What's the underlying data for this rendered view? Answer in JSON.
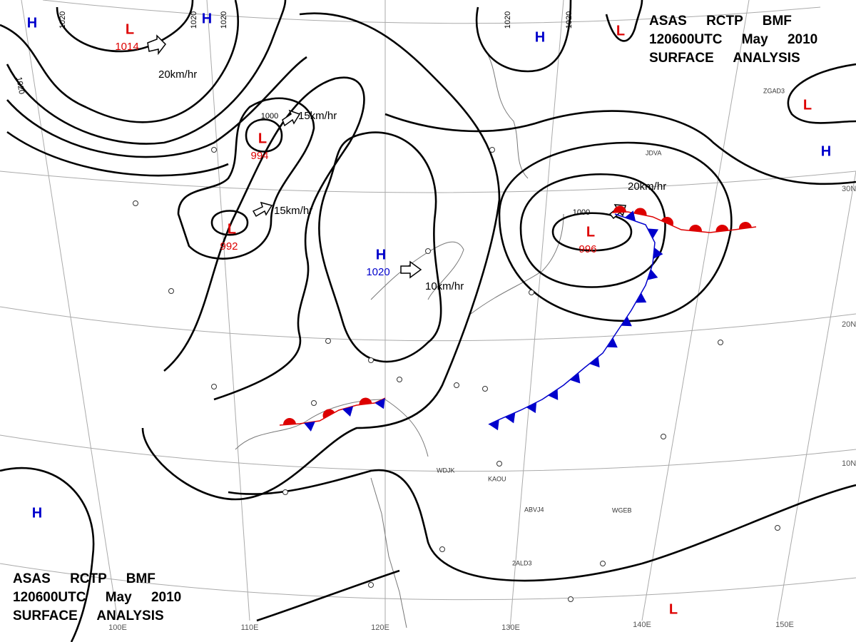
{
  "header": {
    "lines": [
      "ASAS RCTP BMF",
      "120600UTC May 2010",
      "SURFACE ANALYSIS"
    ]
  },
  "footer": {
    "lines": [
      "ASAS RCTP BMF",
      "120600UTC May 2010",
      "SURFACE ANALYSIS"
    ]
  },
  "centers": [
    {
      "letter": "H"
    },
    {
      "letter": "L",
      "pressure": "1014"
    },
    {
      "letter": "H"
    },
    {
      "letter": "H"
    },
    {
      "letter": "L"
    },
    {
      "letter": "L"
    },
    {
      "letter": "H"
    },
    {
      "letter": "L",
      "pressure": "994"
    },
    {
      "letter": "L",
      "pressure": "992"
    },
    {
      "letter": "H",
      "pressure": "1020"
    },
    {
      "letter": "L",
      "pressure": "996"
    },
    {
      "letter": "H"
    },
    {
      "letter": "L"
    }
  ],
  "motion_labels": [
    "20km/hr",
    "15km/hr",
    "15km/hr",
    "10km/hr",
    "20km/hr"
  ],
  "isobar_labels": [
    "1020",
    "1020",
    "1020",
    "1020",
    "1020",
    "1020",
    "1000",
    "1000"
  ],
  "latitude_labels": [
    "30N",
    "20N",
    "10N"
  ],
  "longitude_labels": [
    "100E",
    "110E",
    "120E",
    "130E",
    "140E",
    "150E"
  ],
  "station_ids": [
    "ZGAD3",
    "JDVA",
    "WDJK",
    "KAOU",
    "ABVJ4",
    "WGEB",
    "2ALD3"
  ]
}
